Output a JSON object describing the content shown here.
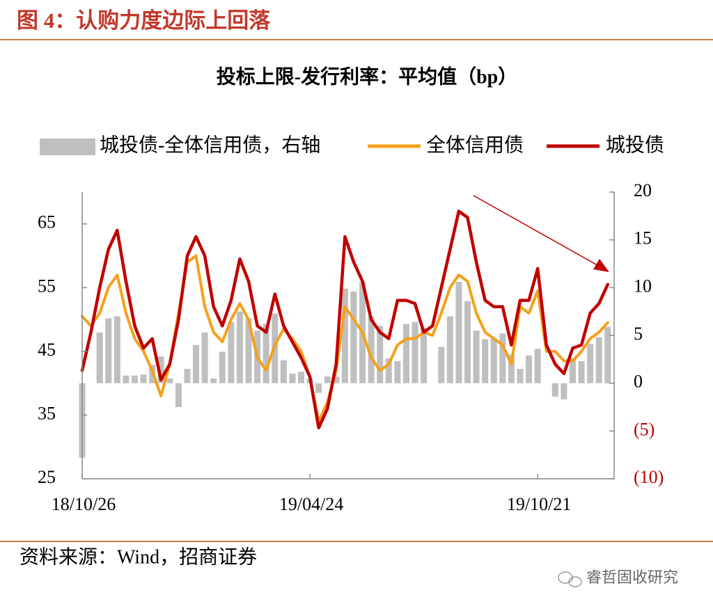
{
  "header": {
    "title": "图 4：认购力度边际上回落"
  },
  "chart_data": {
    "type": "bar-line",
    "title": "投标上限-发行利率：平均值（bp）",
    "categories": [
      "18/10/26",
      null,
      null,
      null,
      null,
      null,
      null,
      null,
      null,
      null,
      null,
      null,
      null,
      null,
      null,
      null,
      null,
      null,
      null,
      null,
      null,
      null,
      null,
      null,
      null,
      null,
      "19/04/24",
      null,
      null,
      null,
      null,
      null,
      null,
      null,
      null,
      null,
      null,
      null,
      null,
      null,
      null,
      null,
      null,
      null,
      null,
      null,
      null,
      null,
      null,
      null,
      null,
      null,
      "19/10/21",
      null,
      null,
      null,
      null,
      null,
      null,
      null,
      null
    ],
    "series": [
      {
        "name": "城投债-全体信用债，右轴",
        "type": "bar",
        "axis": "y2",
        "color": "#bfbfbf",
        "values": [
          -7.8,
          0,
          5.3,
          6.8,
          7.0,
          0.8,
          0.8,
          0.9,
          1.9,
          2.8,
          0.5,
          -2.5,
          1.5,
          4.0,
          5.3,
          0.5,
          3.3,
          6.4,
          7.5,
          6.8,
          5.5,
          6.2,
          7.3,
          2.4,
          1.0,
          1.2,
          0.5,
          -1.0,
          0.7,
          0.7,
          9.9,
          9.6,
          10.6,
          7.0,
          6.0,
          2.6,
          2.3,
          6.2,
          6.4,
          5.8,
          0,
          3.8,
          7.0,
          10.6,
          8.6,
          5.5,
          4.6,
          4.7,
          5.2,
          3.0,
          1.5,
          2.9,
          3.6,
          0,
          -1.4,
          -1.7,
          2.6,
          2.3,
          4.1,
          4.8,
          5.9
        ]
      },
      {
        "name": "全体信用债",
        "type": "line",
        "color": "#f5a01a",
        "values": [
          50.5,
          49,
          51,
          55,
          57,
          51,
          47,
          45,
          42,
          38,
          43,
          51,
          59,
          60,
          52,
          48,
          46.5,
          50,
          52.5,
          50,
          44,
          42,
          46,
          48.5,
          47,
          45,
          41,
          34,
          37,
          42,
          52,
          50,
          48,
          44,
          42,
          43,
          46,
          47,
          47,
          48,
          47.5,
          51,
          55,
          57,
          56,
          51,
          48,
          47,
          46,
          43,
          52,
          51,
          54.5,
          45,
          45,
          43.5,
          43.5,
          45,
          47,
          48,
          49.5
        ]
      },
      {
        "name": "城投债",
        "type": "line",
        "color": "#c00000",
        "values": [
          42,
          48,
          55,
          61,
          64,
          56,
          49,
          45.5,
          47,
          40.5,
          43,
          50,
          60,
          63,
          60,
          52,
          49,
          53,
          59.5,
          56,
          49,
          48,
          54,
          49,
          46.5,
          44,
          41,
          33,
          36,
          43,
          63,
          59,
          56,
          50,
          48,
          47,
          53,
          53,
          52.5,
          48,
          49,
          55,
          61,
          67,
          66,
          59,
          53,
          52,
          52,
          46,
          53,
          53,
          58,
          46,
          43,
          41.5,
          45.5,
          46,
          51,
          52.5,
          55.5
        ]
      }
    ],
    "ylim": [
      25,
      70
    ],
    "yticks": [
      25,
      35,
      45,
      55,
      65
    ],
    "y2lim": [
      -10,
      20
    ],
    "y2ticks": [
      {
        "value": -10,
        "label": "(10)"
      },
      {
        "value": -5,
        "label": "(5)"
      },
      0,
      5,
      10,
      15,
      20
    ]
  },
  "source": "资料来源：Wind，招商证券",
  "watermark": "睿哲固收研究"
}
